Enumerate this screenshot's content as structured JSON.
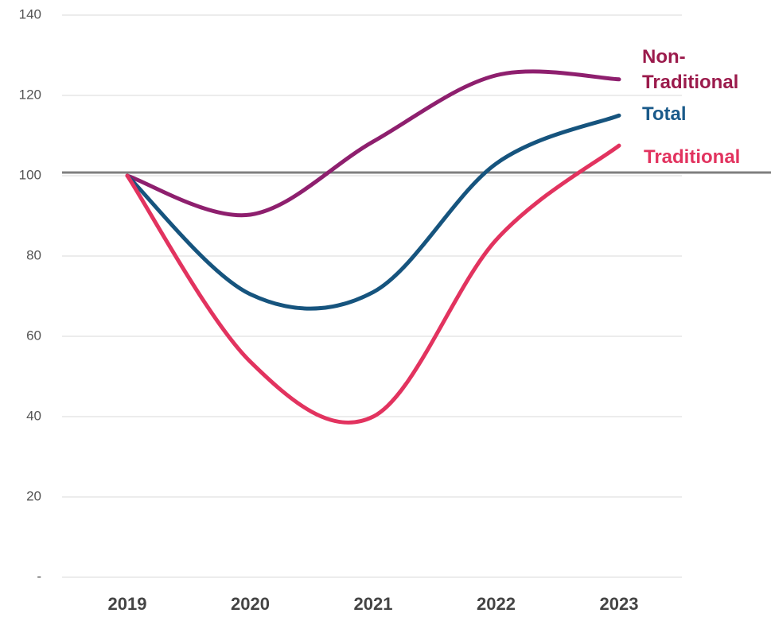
{
  "chart_data": {
    "type": "line",
    "categories": [
      "2019",
      "2020",
      "2021",
      "2022",
      "2023"
    ],
    "series": [
      {
        "name": "Non-Traditional",
        "color": "#8e1f6e",
        "label_color": "#9b1b4c",
        "values": [
          100,
          90.3,
          108.5,
          125,
          124
        ]
      },
      {
        "name": "Total",
        "color": "#16547e",
        "label_color": "#1a5a8a",
        "values": [
          100,
          70.5,
          71,
          103,
          115
        ]
      },
      {
        "name": "Traditional",
        "color": "#e2335f",
        "label_color": "#e2335f",
        "values": [
          100,
          53.7,
          40,
          84,
          107.5
        ]
      }
    ],
    "reference_line": 100.8,
    "ylim": [
      0,
      140
    ],
    "yticks": [
      {
        "value": 0,
        "label": "-"
      },
      20,
      40,
      60,
      80,
      100,
      120,
      140
    ],
    "grid": true
  }
}
